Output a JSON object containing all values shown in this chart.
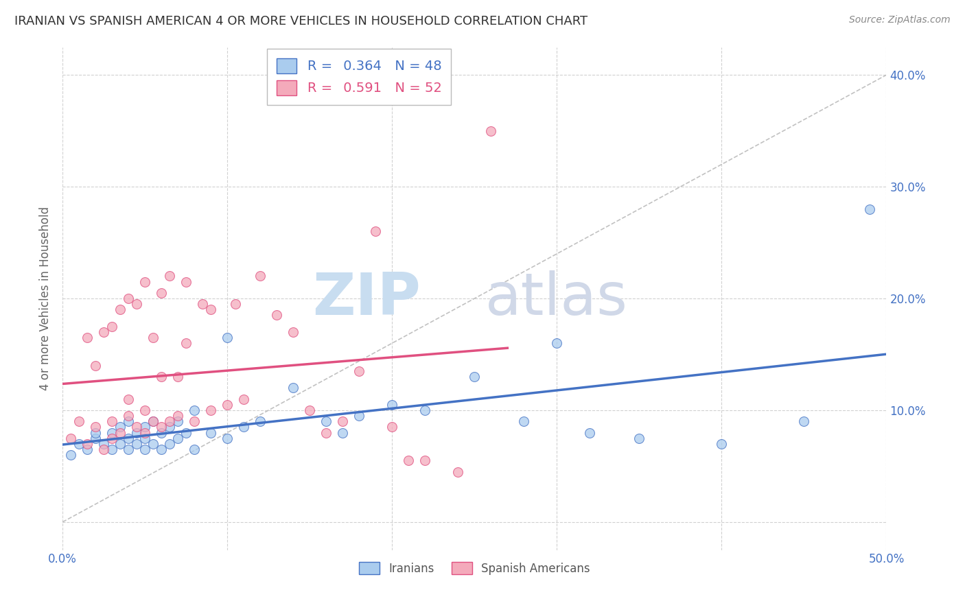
{
  "title": "IRANIAN VS SPANISH AMERICAN 4 OR MORE VEHICLES IN HOUSEHOLD CORRELATION CHART",
  "source": "Source: ZipAtlas.com",
  "ylabel": "4 or more Vehicles in Household",
  "xlim": [
    0.0,
    0.5
  ],
  "ylim": [
    -0.025,
    0.425
  ],
  "iranian_R": 0.364,
  "iranian_N": 48,
  "spanish_R": 0.591,
  "spanish_N": 52,
  "iranian_color": "#aaccee",
  "spanish_color": "#f4aabb",
  "iranian_line_color": "#4472c4",
  "spanish_line_color": "#e05080",
  "background_color": "#ffffff",
  "grid_color": "#cccccc",
  "legend_labels": [
    "Iranians",
    "Spanish Americans"
  ],
  "iranians_x": [
    0.005,
    0.01,
    0.015,
    0.02,
    0.02,
    0.025,
    0.03,
    0.03,
    0.035,
    0.035,
    0.04,
    0.04,
    0.04,
    0.045,
    0.045,
    0.05,
    0.05,
    0.05,
    0.055,
    0.055,
    0.06,
    0.06,
    0.065,
    0.065,
    0.07,
    0.07,
    0.075,
    0.08,
    0.08,
    0.09,
    0.1,
    0.1,
    0.11,
    0.12,
    0.14,
    0.16,
    0.17,
    0.18,
    0.2,
    0.22,
    0.25,
    0.28,
    0.3,
    0.32,
    0.35,
    0.4,
    0.45,
    0.49
  ],
  "iranians_y": [
    0.06,
    0.07,
    0.065,
    0.075,
    0.08,
    0.07,
    0.065,
    0.08,
    0.07,
    0.085,
    0.065,
    0.075,
    0.09,
    0.07,
    0.08,
    0.065,
    0.075,
    0.085,
    0.07,
    0.09,
    0.065,
    0.08,
    0.07,
    0.085,
    0.075,
    0.09,
    0.08,
    0.065,
    0.1,
    0.08,
    0.075,
    0.165,
    0.085,
    0.09,
    0.12,
    0.09,
    0.08,
    0.095,
    0.105,
    0.1,
    0.13,
    0.09,
    0.16,
    0.08,
    0.075,
    0.07,
    0.09,
    0.28
  ],
  "spanish_x": [
    0.005,
    0.01,
    0.015,
    0.015,
    0.02,
    0.02,
    0.025,
    0.025,
    0.03,
    0.03,
    0.03,
    0.035,
    0.035,
    0.04,
    0.04,
    0.04,
    0.045,
    0.045,
    0.05,
    0.05,
    0.05,
    0.055,
    0.055,
    0.06,
    0.06,
    0.06,
    0.065,
    0.065,
    0.07,
    0.07,
    0.075,
    0.075,
    0.08,
    0.085,
    0.09,
    0.09,
    0.1,
    0.105,
    0.11,
    0.12,
    0.13,
    0.14,
    0.15,
    0.16,
    0.17,
    0.18,
    0.19,
    0.2,
    0.21,
    0.22,
    0.24,
    0.26
  ],
  "spanish_y": [
    0.075,
    0.09,
    0.07,
    0.165,
    0.085,
    0.14,
    0.065,
    0.17,
    0.075,
    0.09,
    0.175,
    0.08,
    0.19,
    0.095,
    0.11,
    0.2,
    0.085,
    0.195,
    0.08,
    0.1,
    0.215,
    0.09,
    0.165,
    0.085,
    0.13,
    0.205,
    0.09,
    0.22,
    0.095,
    0.13,
    0.16,
    0.215,
    0.09,
    0.195,
    0.1,
    0.19,
    0.105,
    0.195,
    0.11,
    0.22,
    0.185,
    0.17,
    0.1,
    0.08,
    0.09,
    0.135,
    0.26,
    0.085,
    0.055,
    0.055,
    0.045,
    0.35
  ],
  "ref_line_x": [
    0.0,
    0.5
  ],
  "ref_line_y": [
    0.0,
    0.4
  ],
  "watermark_zip_color": "#c8ddf0",
  "watermark_atlas_color": "#d0d8e8"
}
